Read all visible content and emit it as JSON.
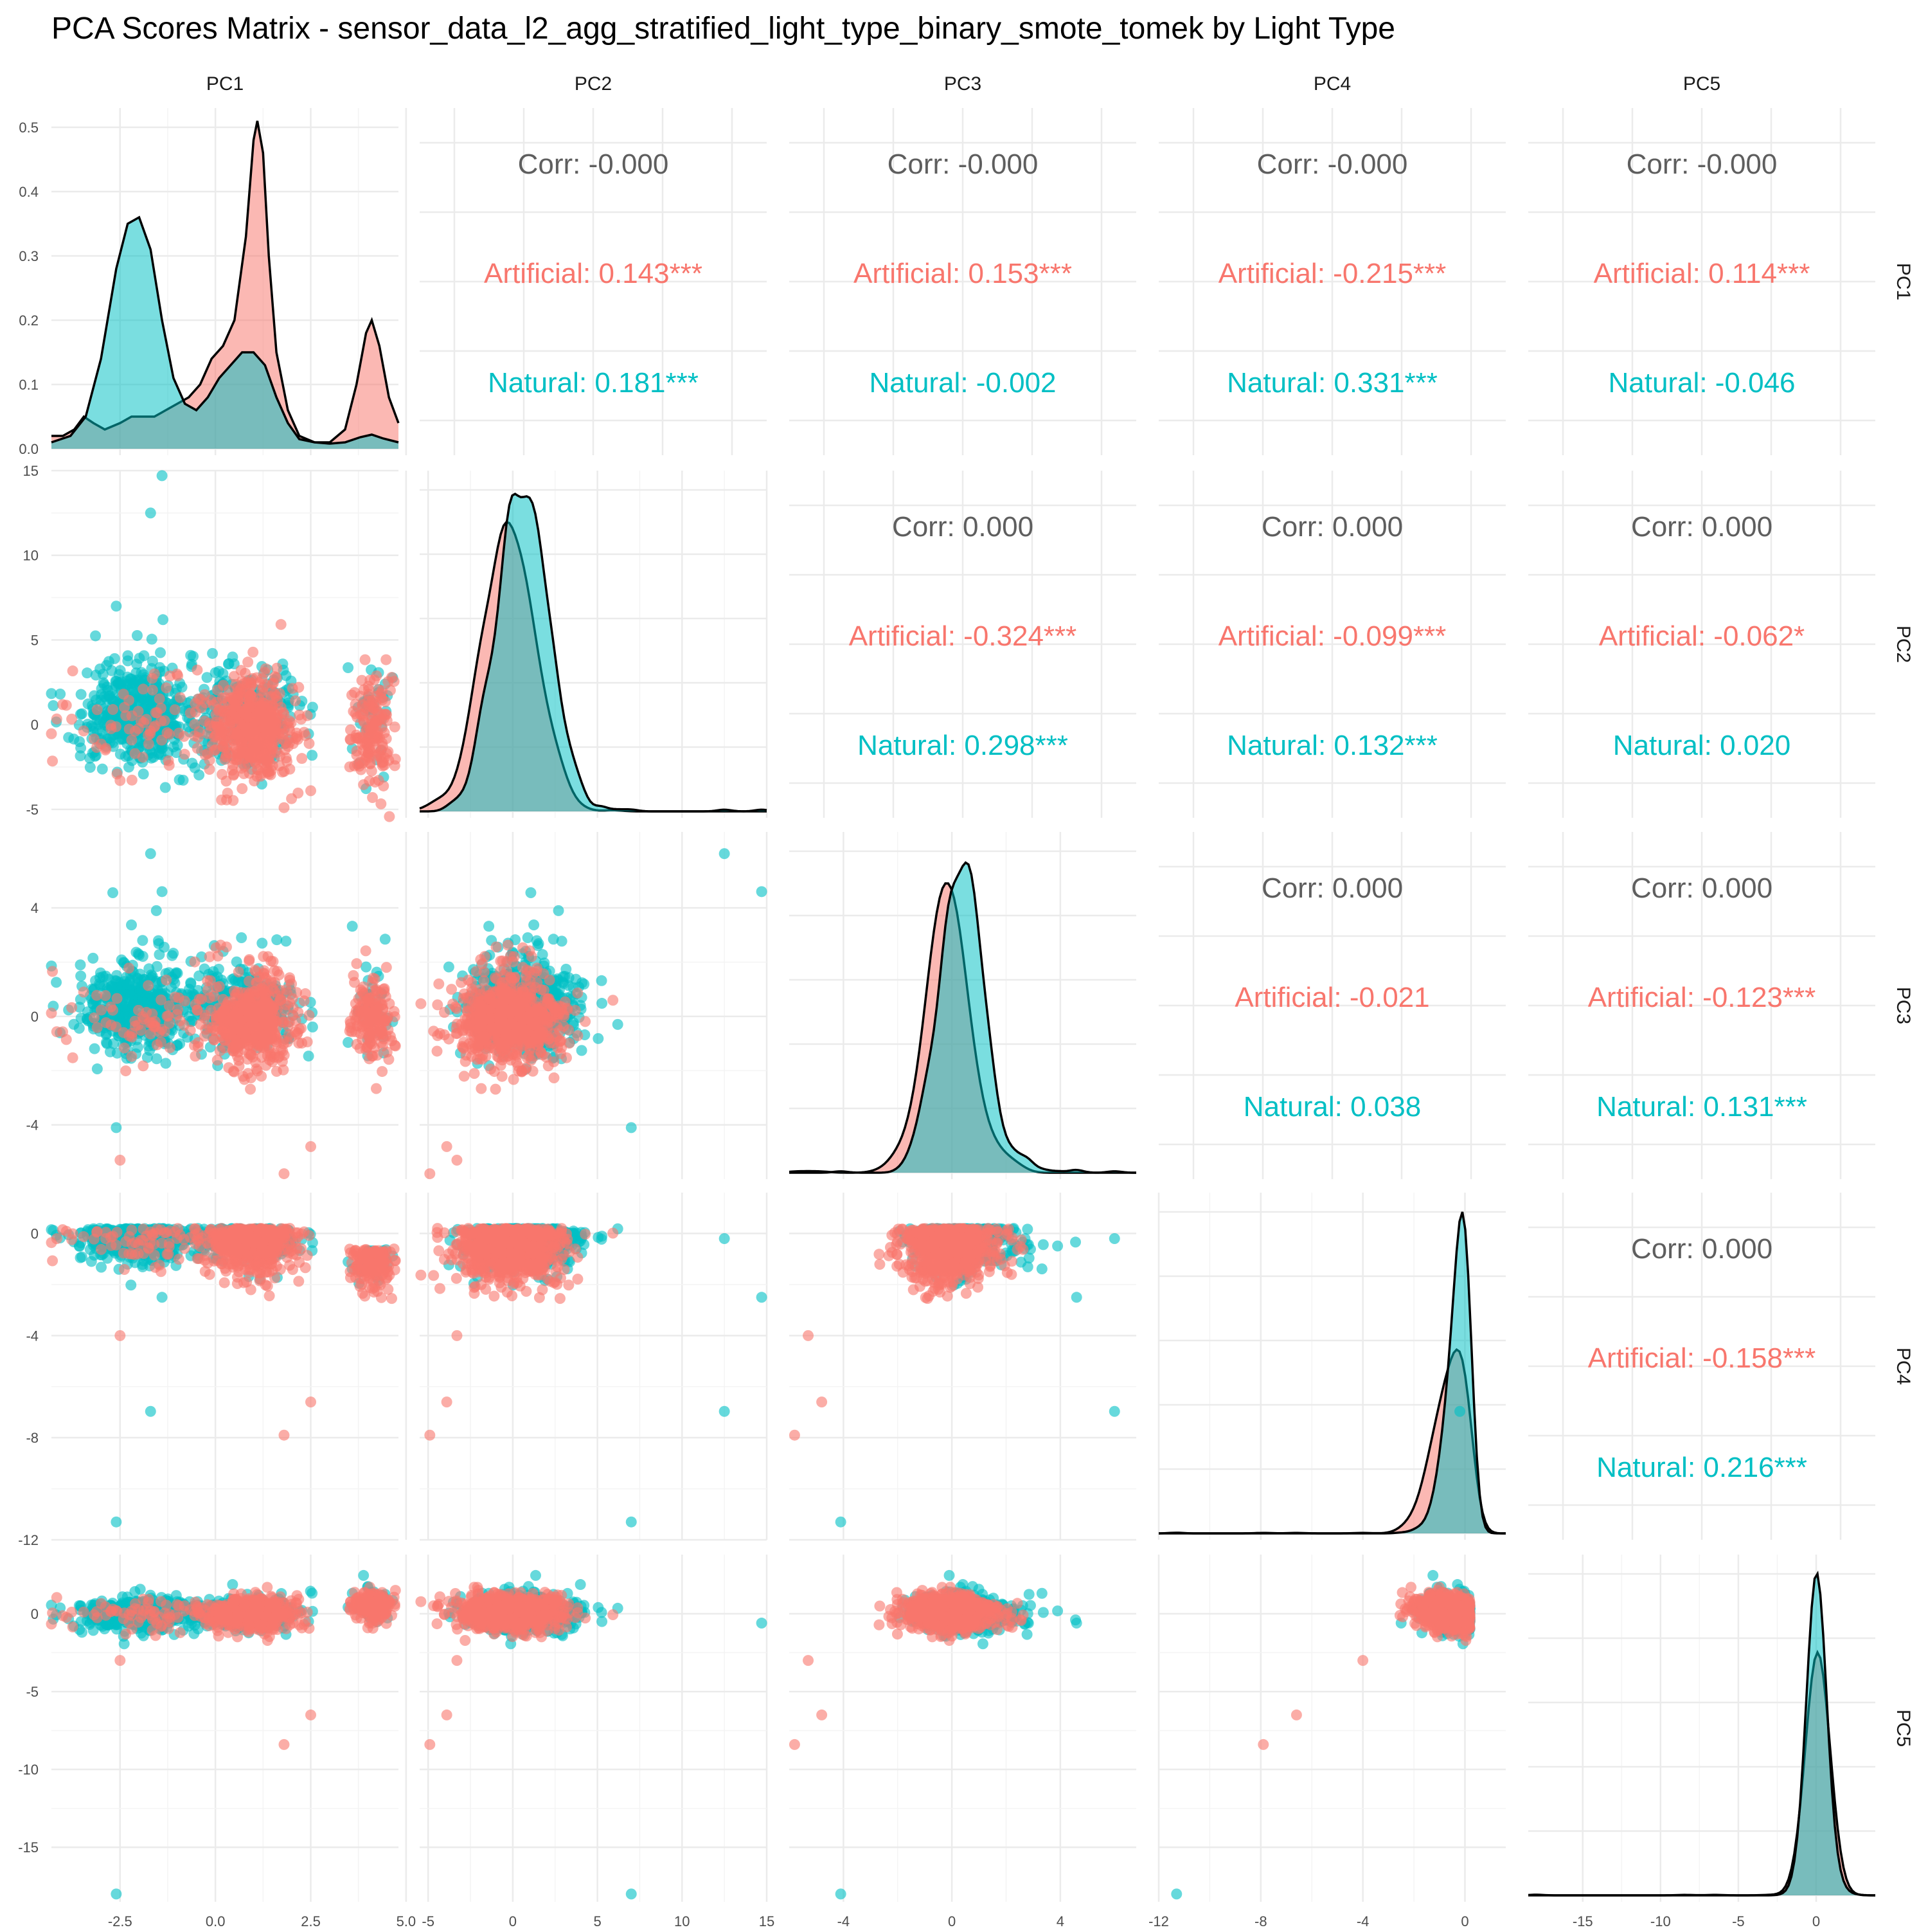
{
  "chart_data": {
    "type": "scatter-matrix",
    "title": "PCA Scores Matrix - sensor_data_l2_agg_stratified_light_type_binary_smote_tomek by Light Type",
    "variables": [
      "PC1",
      "PC2",
      "PC3",
      "PC4",
      "PC5"
    ],
    "groups": [
      {
        "name": "Artificial",
        "color": "#F8766D"
      },
      {
        "name": "Natural",
        "color": "#00BFC4"
      }
    ],
    "axes": {
      "PC1": {
        "range": [
          -4.3,
          4.8
        ],
        "ticks": [
          -2.5,
          0.0,
          2.5,
          5.0
        ],
        "tick_labels": [
          "-2.5",
          "0.0",
          "2.5",
          "5.0"
        ]
      },
      "PC2": {
        "range": [
          -5.5,
          15.0
        ],
        "ticks": [
          -5,
          0,
          5,
          10,
          15
        ],
        "tick_labels": [
          "-5",
          "0",
          "5",
          "10",
          "15"
        ]
      },
      "PC3": {
        "range": [
          -6.0,
          6.8
        ],
        "ticks": [
          -4,
          0,
          4
        ],
        "tick_labels": [
          "-4",
          "0",
          "4"
        ]
      },
      "PC4": {
        "range": [
          -12.0,
          1.6
        ],
        "ticks": [
          -12,
          -8,
          -4,
          0
        ],
        "tick_labels": [
          "-12",
          "-8",
          "-4",
          "0"
        ]
      },
      "PC5": {
        "range": [
          -18.5,
          3.8
        ],
        "ticks": [
          -15,
          -10,
          -5,
          0
        ],
        "tick_labels": [
          "-15",
          "-10",
          "-5",
          "0"
        ]
      }
    },
    "density_axis": {
      "range": [
        -0.01,
        0.53
      ],
      "ticks": [
        0.0,
        0.1,
        0.2,
        0.3,
        0.4,
        0.5
      ],
      "tick_labels": [
        "0.0",
        "0.1",
        "0.2",
        "0.3",
        "0.4",
        "0.5"
      ]
    },
    "corr_prefix": "Corr: ",
    "correlations": [
      {
        "row": "PC1",
        "col": "PC2",
        "overall": "-0.000",
        "Artificial": "0.143***",
        "Natural": "0.181***"
      },
      {
        "row": "PC1",
        "col": "PC3",
        "overall": "-0.000",
        "Artificial": "0.153***",
        "Natural": "-0.002"
      },
      {
        "row": "PC1",
        "col": "PC4",
        "overall": "-0.000",
        "Artificial": "-0.215***",
        "Natural": "0.331***"
      },
      {
        "row": "PC1",
        "col": "PC5",
        "overall": "-0.000",
        "Artificial": "0.114***",
        "Natural": "-0.046"
      },
      {
        "row": "PC2",
        "col": "PC3",
        "overall": "0.000",
        "Artificial": "-0.324***",
        "Natural": "0.298***"
      },
      {
        "row": "PC2",
        "col": "PC4",
        "overall": "0.000",
        "Artificial": "-0.099***",
        "Natural": "0.132***"
      },
      {
        "row": "PC2",
        "col": "PC5",
        "overall": "0.000",
        "Artificial": "-0.062*",
        "Natural": "0.020"
      },
      {
        "row": "PC3",
        "col": "PC4",
        "overall": "0.000",
        "Artificial": "-0.021",
        "Natural": "0.038"
      },
      {
        "row": "PC3",
        "col": "PC5",
        "overall": "0.000",
        "Artificial": "-0.123***",
        "Natural": "0.131***"
      },
      {
        "row": "PC4",
        "col": "PC5",
        "overall": "0.000",
        "Artificial": "-0.158***",
        "Natural": "0.216***"
      }
    ],
    "pc1_density": {
      "Natural": [
        [
          -4.3,
          0.01
        ],
        [
          -3.8,
          0.02
        ],
        [
          -3.4,
          0.05
        ],
        [
          -3.0,
          0.14
        ],
        [
          -2.6,
          0.28
        ],
        [
          -2.3,
          0.35
        ],
        [
          -2.0,
          0.36
        ],
        [
          -1.7,
          0.31
        ],
        [
          -1.4,
          0.2
        ],
        [
          -1.1,
          0.11
        ],
        [
          -0.8,
          0.07
        ],
        [
          -0.5,
          0.06
        ],
        [
          -0.2,
          0.08
        ],
        [
          0.1,
          0.11
        ],
        [
          0.4,
          0.13
        ],
        [
          0.7,
          0.15
        ],
        [
          1.0,
          0.15
        ],
        [
          1.3,
          0.13
        ],
        [
          1.6,
          0.08
        ],
        [
          1.9,
          0.04
        ],
        [
          2.2,
          0.015
        ],
        [
          2.6,
          0.01
        ],
        [
          3.0,
          0.008
        ],
        [
          3.4,
          0.01
        ],
        [
          3.8,
          0.018
        ],
        [
          4.1,
          0.022
        ],
        [
          4.4,
          0.016
        ],
        [
          4.8,
          0.01
        ]
      ],
      "Artificial": [
        [
          -4.3,
          0.02
        ],
        [
          -4.0,
          0.02
        ],
        [
          -3.7,
          0.03
        ],
        [
          -3.45,
          0.05
        ],
        [
          -3.2,
          0.04
        ],
        [
          -2.9,
          0.03
        ],
        [
          -2.5,
          0.04
        ],
        [
          -2.2,
          0.05
        ],
        [
          -1.9,
          0.05
        ],
        [
          -1.6,
          0.05
        ],
        [
          -1.3,
          0.06
        ],
        [
          -1.0,
          0.07
        ],
        [
          -0.7,
          0.08
        ],
        [
          -0.4,
          0.1
        ],
        [
          -0.1,
          0.14
        ],
        [
          0.2,
          0.16
        ],
        [
          0.5,
          0.2
        ],
        [
          0.8,
          0.33
        ],
        [
          1.0,
          0.48
        ],
        [
          1.1,
          0.51
        ],
        [
          1.25,
          0.46
        ],
        [
          1.4,
          0.3
        ],
        [
          1.6,
          0.15
        ],
        [
          1.9,
          0.06
        ],
        [
          2.2,
          0.02
        ],
        [
          2.6,
          0.01
        ],
        [
          3.0,
          0.01
        ],
        [
          3.4,
          0.03
        ],
        [
          3.7,
          0.1
        ],
        [
          3.95,
          0.18
        ],
        [
          4.1,
          0.2
        ],
        [
          4.3,
          0.16
        ],
        [
          4.55,
          0.08
        ],
        [
          4.8,
          0.04
        ]
      ]
    },
    "n_points_per_scatter_panel": 1500
  }
}
